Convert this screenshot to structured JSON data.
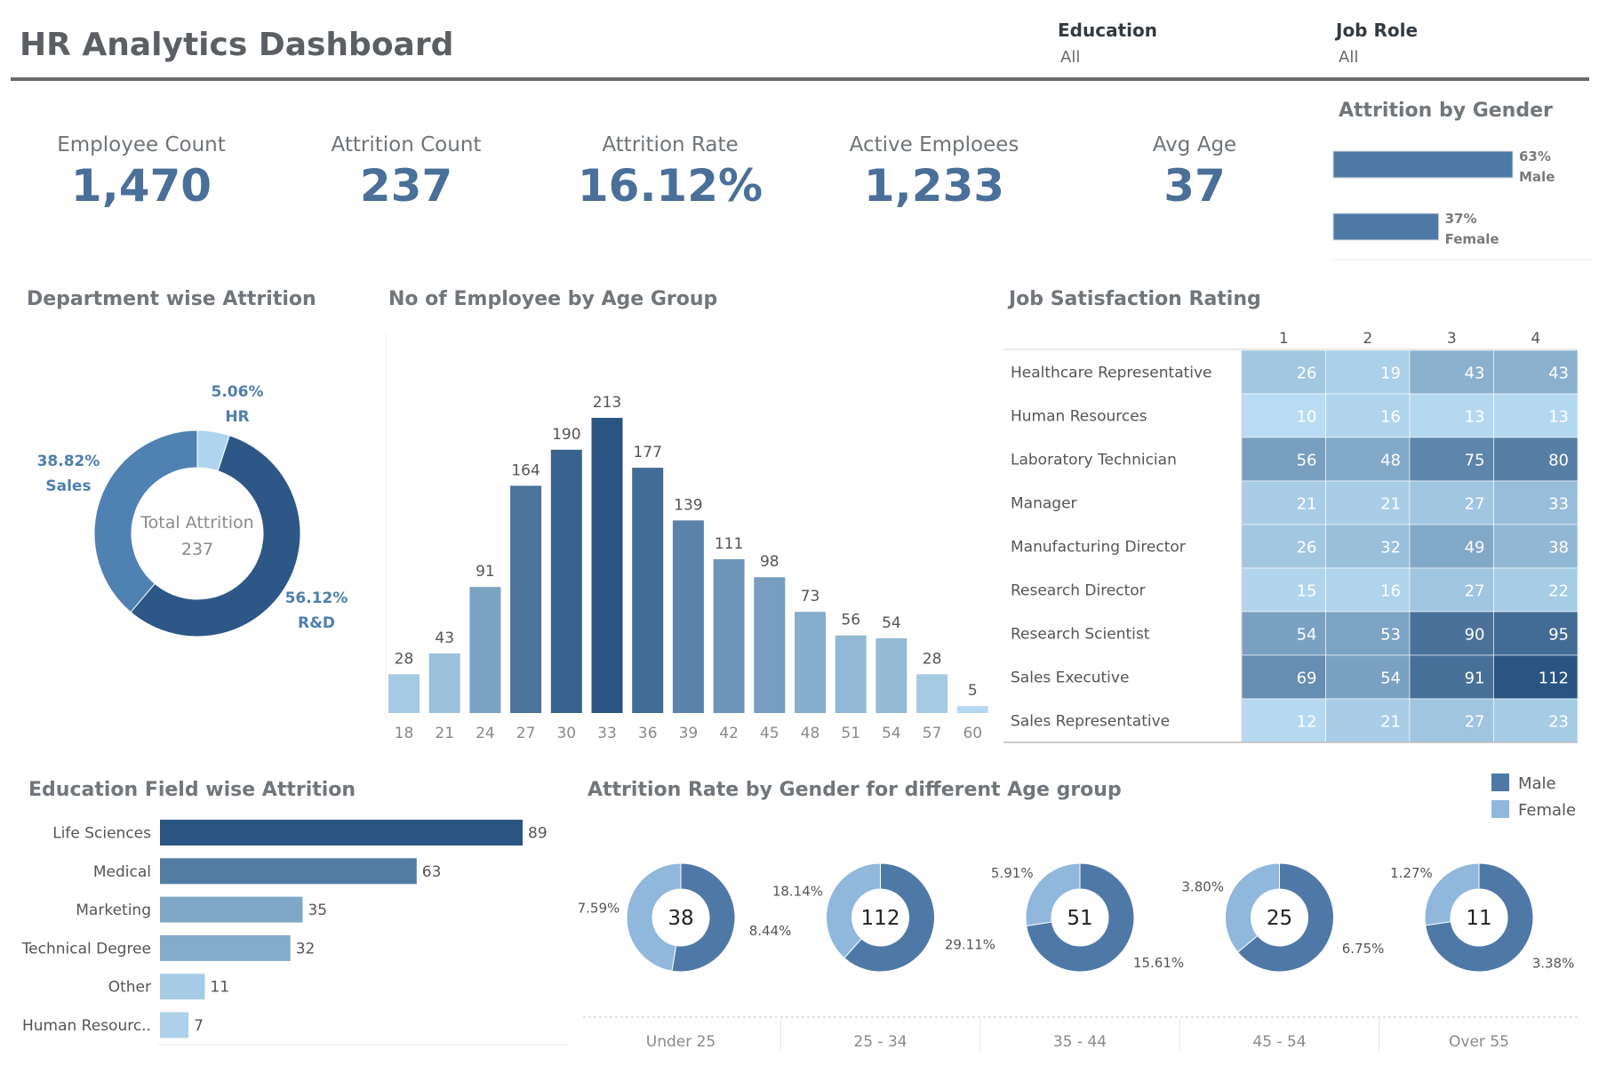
{
  "header": {
    "title": "HR Analytics Dashboard",
    "filters": [
      {
        "label": "Education",
        "value": "All"
      },
      {
        "label": "Job Role",
        "value": "All"
      }
    ]
  },
  "kpis": [
    {
      "label": "Employee Count",
      "value": "1,470"
    },
    {
      "label": "Attrition Count",
      "value": "237"
    },
    {
      "label": "Attrition Rate",
      "value": "16.12%"
    },
    {
      "label": "Active Emploees",
      "value": "1,233"
    },
    {
      "label": "Avg Age",
      "value": "37"
    }
  ],
  "chart_data": [
    {
      "id": "gender",
      "type": "bar",
      "orientation": "horizontal",
      "title": "Attrition by Gender",
      "categories": [
        "Male",
        "Female"
      ],
      "values": [
        63,
        37
      ],
      "labels": [
        "63%",
        "37%"
      ],
      "colors": [
        "#4e79a7",
        "#4e79a7"
      ]
    },
    {
      "id": "department",
      "type": "pie",
      "title": "Department wise Attrition",
      "center_label": "Total Attrition",
      "center_value": "237",
      "categories": [
        "HR",
        "R&D",
        "Sales"
      ],
      "values": [
        5.06,
        56.12,
        38.82
      ],
      "labels": [
        "5.06%",
        "56.12%",
        "38.82%"
      ],
      "colors": [
        "#aed4ee",
        "#2c5787",
        "#4f81b2"
      ]
    },
    {
      "id": "age",
      "type": "bar",
      "title": "No of Employee by Age Group",
      "categories": [
        "18",
        "21",
        "24",
        "27",
        "30",
        "33",
        "36",
        "39",
        "42",
        "45",
        "48",
        "51",
        "54",
        "57",
        "60"
      ],
      "values": [
        28,
        43,
        91,
        164,
        190,
        213,
        177,
        139,
        111,
        98,
        73,
        56,
        54,
        28,
        5
      ],
      "ylim": [
        0,
        213
      ]
    },
    {
      "id": "jobsat",
      "type": "heatmap",
      "title": "Job Satisfaction Rating",
      "columns": [
        "1",
        "2",
        "3",
        "4"
      ],
      "rows": [
        {
          "label": "Healthcare Representative",
          "values": [
            26,
            19,
            43,
            43
          ]
        },
        {
          "label": "Human Resources",
          "values": [
            10,
            16,
            13,
            13
          ]
        },
        {
          "label": "Laboratory Technician",
          "values": [
            56,
            48,
            75,
            80
          ]
        },
        {
          "label": "Manager",
          "values": [
            21,
            21,
            27,
            33
          ]
        },
        {
          "label": "Manufacturing Director",
          "values": [
            26,
            32,
            49,
            38
          ]
        },
        {
          "label": "Research Director",
          "values": [
            15,
            16,
            27,
            22
          ]
        },
        {
          "label": "Research Scientist",
          "values": [
            54,
            53,
            90,
            95
          ]
        },
        {
          "label": "Sales Executive",
          "values": [
            69,
            54,
            91,
            112
          ]
        },
        {
          "label": "Sales Representative",
          "values": [
            12,
            21,
            27,
            23
          ]
        }
      ]
    },
    {
      "id": "education",
      "type": "bar",
      "orientation": "horizontal",
      "title": "Education Field wise Attrition",
      "categories": [
        "Life Sciences",
        "Medical",
        "Marketing",
        "Technical Degree",
        "Other",
        "Human Resourc.."
      ],
      "values": [
        89,
        63,
        35,
        32,
        11,
        7
      ]
    },
    {
      "id": "agegender",
      "type": "pie",
      "title": "Attrition Rate by Gender for different Age group",
      "legend": [
        {
          "name": "Male",
          "color": "#4e79a7"
        },
        {
          "name": "Female",
          "color": "#8fb8dc"
        }
      ],
      "groups": [
        {
          "label": "Under 25",
          "total": "38",
          "male": 8.44,
          "female": 7.59,
          "male_label": "8.44%",
          "female_label": "7.59%"
        },
        {
          "label": "25 - 34",
          "total": "112",
          "male": 29.11,
          "female": 18.14,
          "male_label": "29.11%",
          "female_label": "18.14%"
        },
        {
          "label": "35 - 44",
          "total": "51",
          "male": 15.61,
          "female": 5.91,
          "male_label": "15.61%",
          "female_label": "5.91%"
        },
        {
          "label": "45 - 54",
          "total": "25",
          "male": 6.75,
          "female": 3.8,
          "male_label": "6.75%",
          "female_label": "3.80%"
        },
        {
          "label": "Over 55",
          "total": "11",
          "male": 3.38,
          "female": 1.27,
          "male_label": "3.38%",
          "female_label": "1.27%"
        }
      ]
    }
  ]
}
